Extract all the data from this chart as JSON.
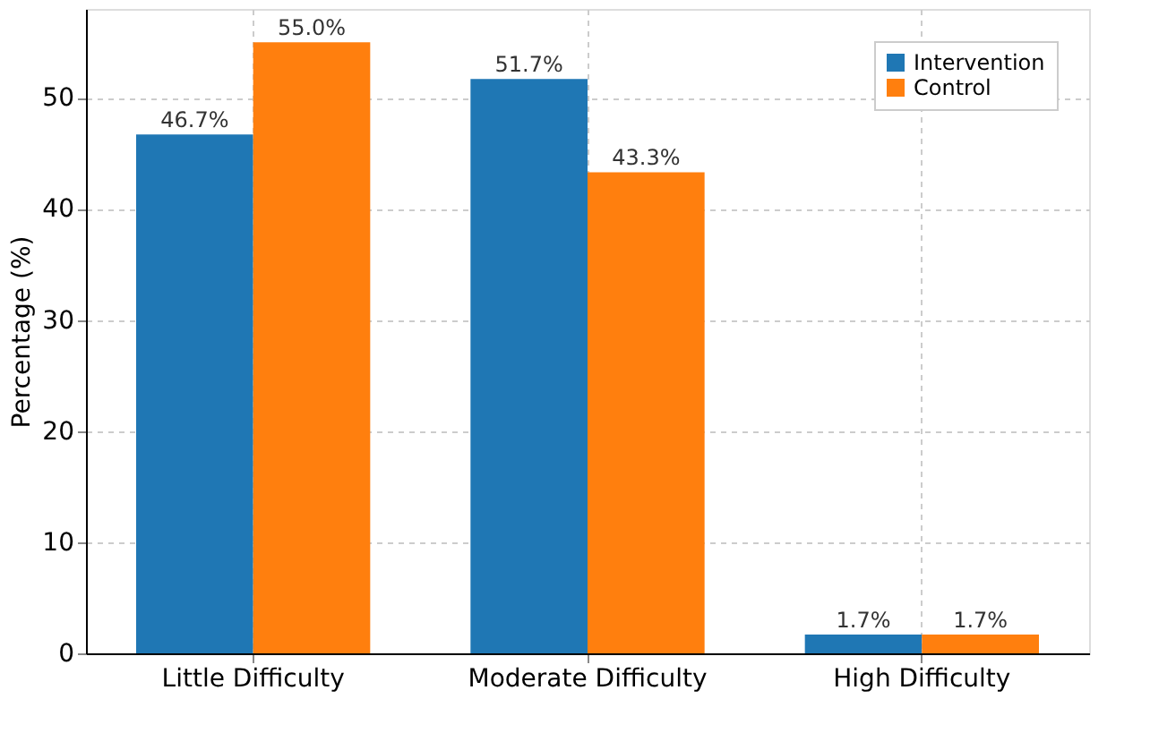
{
  "chart_data": {
    "type": "bar",
    "ylabel": "Percentage (%)",
    "categories": [
      "Little Difficulty",
      "Moderate Difficulty",
      "High Difficulty"
    ],
    "series": [
      {
        "name": "Intervention",
        "color": "#1f77b4",
        "values": [
          46.7,
          51.7,
          1.7
        ]
      },
      {
        "name": "Control",
        "color": "#ff7f0e",
        "values": [
          55.0,
          43.3,
          1.7
        ]
      }
    ],
    "value_labels": [
      [
        "46.7%",
        "51.7%",
        "1.7%"
      ],
      [
        "55.0%",
        "43.3%",
        "1.7%"
      ]
    ],
    "ylim": [
      0,
      58
    ],
    "yticks": [
      0,
      10,
      20,
      30,
      40,
      50
    ],
    "grid": true,
    "legend": "top right"
  }
}
